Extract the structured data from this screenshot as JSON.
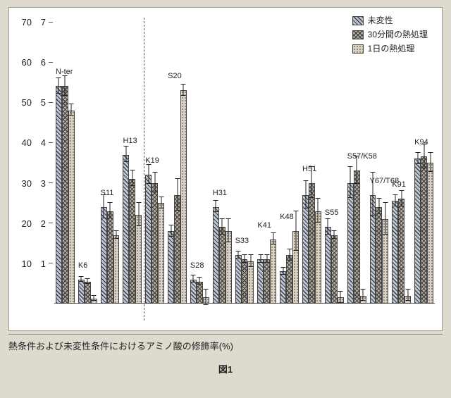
{
  "caption": "熱条件および未変性条件におけるアミノ酸の修飾率(%)",
  "figure_label": "図1",
  "chart": {
    "type": "bar",
    "background_color": "#ffffff",
    "left_axis": {
      "min": 0,
      "max": 70,
      "step": 10
    },
    "right_axis": {
      "min": 0,
      "max": 7,
      "step": 1
    },
    "divider_after_group_index": 3,
    "legend": {
      "items": [
        {
          "label": "未変性",
          "pattern": "p0"
        },
        {
          "label": "30分間の熱処理",
          "pattern": "p1"
        },
        {
          "label": "1日の熱処理",
          "pattern": "p2"
        }
      ]
    },
    "series_patterns": [
      "p0",
      "p1",
      "p2"
    ],
    "groups": [
      {
        "label": "N-ter",
        "values": [
          54,
          54,
          48
        ],
        "errors": [
          2,
          2.5,
          1.5
        ],
        "use_right_axis": false
      },
      {
        "label": "K6",
        "values": [
          6,
          5.5,
          1.2
        ],
        "errors": [
          0.7,
          0.7,
          0.7
        ],
        "use_right_axis": false
      },
      {
        "label": "S11",
        "values": [
          24,
          23,
          17
        ],
        "errors": [
          3,
          2,
          1
        ],
        "use_right_axis": false
      },
      {
        "label": "H13",
        "values": [
          37,
          31,
          22
        ],
        "errors": [
          2,
          2,
          3
        ],
        "use_right_axis": false
      },
      {
        "label": "K19",
        "values": [
          3.2,
          3.0,
          2.5
        ],
        "errors": [
          0.25,
          0.25,
          0.15
        ],
        "use_right_axis": true
      },
      {
        "label": "S20",
        "values": [
          1.8,
          2.7,
          5.3
        ],
        "errors": [
          0.15,
          0.4,
          0.15
        ],
        "use_right_axis": true
      },
      {
        "label": "S28",
        "values": [
          0.6,
          0.55,
          0.15
        ],
        "errors": [
          0.1,
          0.1,
          0.2
        ],
        "use_right_axis": true
      },
      {
        "label": "H31",
        "values": [
          2.4,
          1.9,
          1.8
        ],
        "errors": [
          0.15,
          0.2,
          0.3
        ],
        "use_right_axis": true
      },
      {
        "label": "S33",
        "values": [
          1.2,
          1.1,
          1.05
        ],
        "errors": [
          0.1,
          0.1,
          0.15
        ],
        "use_right_axis": true
      },
      {
        "label": "K41",
        "values": [
          1.1,
          1.1,
          1.6
        ],
        "errors": [
          0.1,
          0.1,
          0.15
        ],
        "use_right_axis": true
      },
      {
        "label": "K48",
        "values": [
          0.8,
          1.2,
          1.8
        ],
        "errors": [
          0.1,
          0.15,
          0.5
        ],
        "use_right_axis": true
      },
      {
        "label": "H51",
        "values": [
          2.7,
          3.0,
          2.3
        ],
        "errors": [
          0.35,
          0.4,
          0.3
        ],
        "use_right_axis": true
      },
      {
        "label": "S55",
        "values": [
          1.9,
          1.7,
          0.15
        ],
        "errors": [
          0.2,
          0.1,
          0.15
        ],
        "use_right_axis": true
      },
      {
        "label": "S57/K58",
        "values": [
          3.0,
          3.3,
          0.2
        ],
        "errors": [
          0.4,
          0.35,
          0.15
        ],
        "use_right_axis": true
      },
      {
        "label": "Y67/T68",
        "values": [
          2.7,
          2.4,
          2.1
        ],
        "errors": [
          0.55,
          0.2,
          0.4
        ],
        "use_right_axis": true
      },
      {
        "label": "K91",
        "values": [
          2.55,
          2.6,
          0.2
        ],
        "errors": [
          0.15,
          0.2,
          0.15
        ],
        "use_right_axis": true
      },
      {
        "label": "K94",
        "values": [
          3.6,
          3.65,
          3.5
        ],
        "errors": [
          0.15,
          0.3,
          0.25
        ],
        "use_right_axis": true
      }
    ],
    "label_style": {
      "fontsize": 11,
      "color": "#222"
    },
    "axis_label_fontsize": 13
  }
}
